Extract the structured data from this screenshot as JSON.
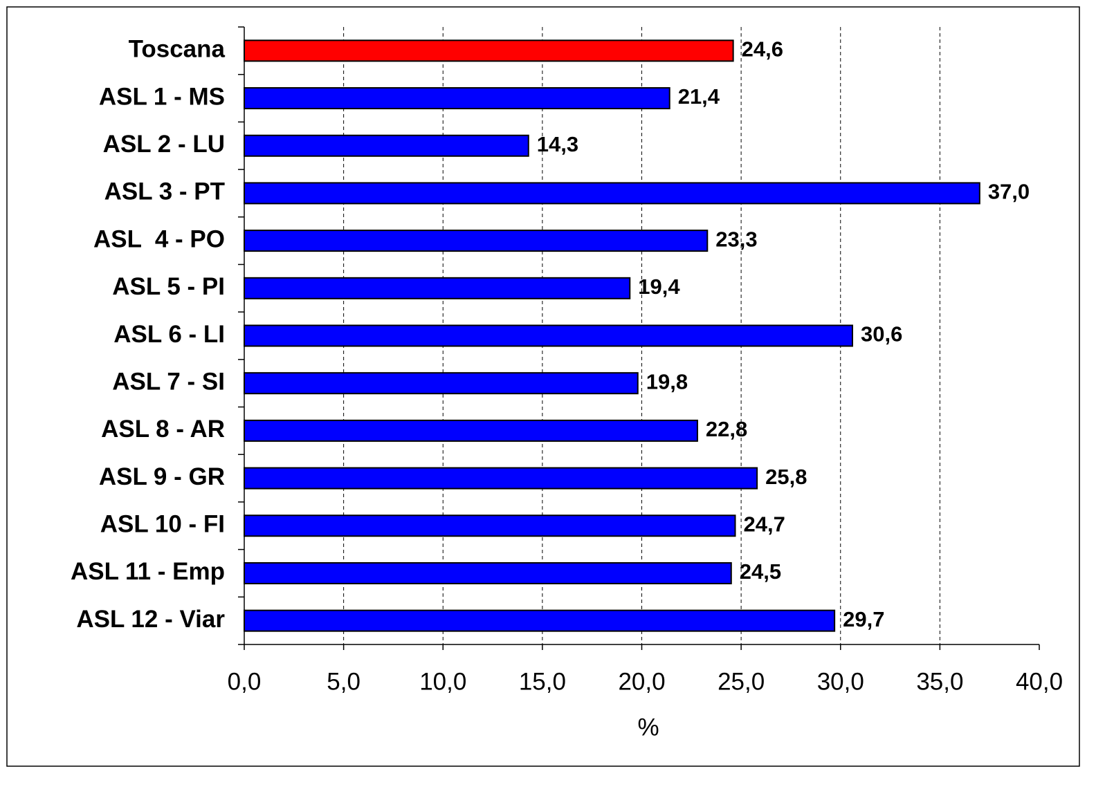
{
  "chart_data": {
    "type": "bar",
    "orientation": "horizontal",
    "x_label": "%",
    "categories": [
      "Toscana",
      "ASL 1 - MS",
      "ASL 2 - LU",
      "ASL 3 - PT",
      "ASL  4 - PO",
      "ASL 5 - PI",
      "ASL 6 - LI",
      "ASL 7 - SI",
      "ASL 8 - AR",
      "ASL 9 - GR",
      "ASL 10 - FI",
      "ASL 11 - Emp",
      "ASL 12 - Viar"
    ],
    "values": [
      24.6,
      21.4,
      14.3,
      37.0,
      23.3,
      19.4,
      30.6,
      19.8,
      22.8,
      25.8,
      24.7,
      24.5,
      29.7
    ],
    "value_labels": [
      "24,6",
      "21,4",
      "14,3",
      "37,0",
      "23,3",
      "19,4",
      "30,6",
      "19,8",
      "22,8",
      "25,8",
      "24,7",
      "24,5",
      "29,7"
    ],
    "colors": [
      "#ff0000",
      "#0000ff",
      "#0000ff",
      "#0000ff",
      "#0000ff",
      "#0000ff",
      "#0000ff",
      "#0000ff",
      "#0000ff",
      "#0000ff",
      "#0000ff",
      "#0000ff",
      "#0000ff"
    ],
    "xlim": [
      0,
      40
    ],
    "xticks": [
      {
        "value": 0,
        "label": "0,0"
      },
      {
        "value": 5,
        "label": "5,0"
      },
      {
        "value": 10,
        "label": "10,0"
      },
      {
        "value": 15,
        "label": "15,0"
      },
      {
        "value": 20,
        "label": "20,0"
      },
      {
        "value": 25,
        "label": "25,0"
      },
      {
        "value": 30,
        "label": "30,0"
      },
      {
        "value": 35,
        "label": "35,0"
      },
      {
        "value": 40,
        "label": "40,0"
      }
    ],
    "grid": true
  }
}
